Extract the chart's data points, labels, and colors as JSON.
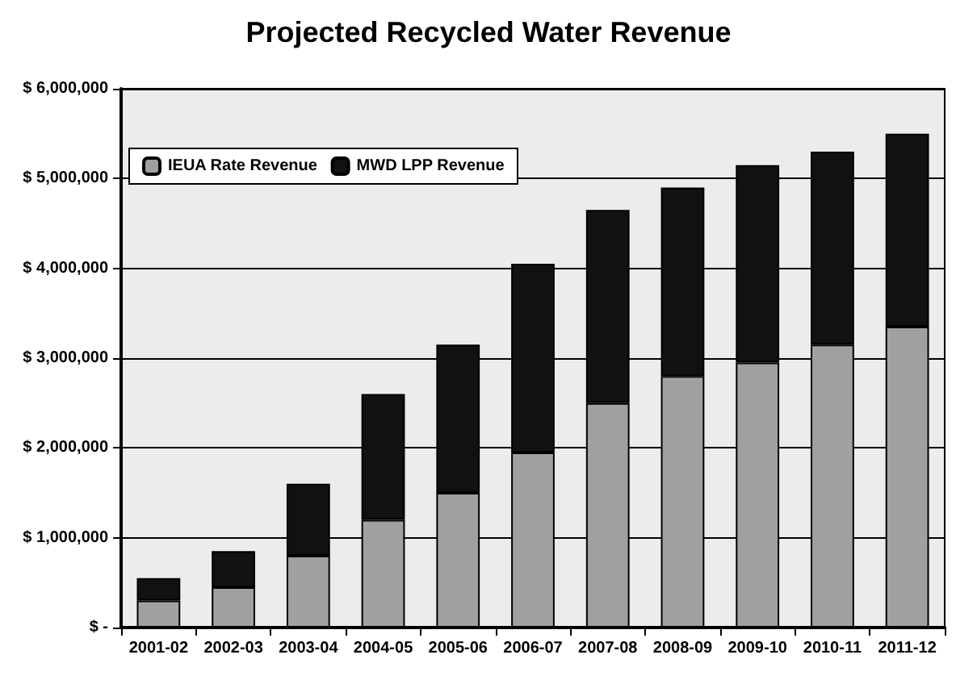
{
  "chart_data": {
    "type": "bar",
    "title": "Projected Recycled Water Revenue",
    "stacked": true,
    "categories": [
      "2001-02",
      "2002-03",
      "2003-04",
      "2004-05",
      "2005-06",
      "2006-07",
      "2007-08",
      "2008-09",
      "2009-10",
      "2010-11",
      "2011-12"
    ],
    "series": [
      {
        "name": "IEUA Rate Revenue",
        "color": "#a0a0a0",
        "values": [
          300000,
          450000,
          800000,
          1200000,
          1500000,
          1950000,
          2500000,
          2800000,
          2950000,
          3150000,
          3350000
        ]
      },
      {
        "name": "MWD LPP Revenue",
        "color": "#111111",
        "values": [
          250000,
          400000,
          800000,
          1400000,
          1650000,
          2100000,
          2150000,
          2100000,
          2200000,
          2150000,
          2150000
        ]
      }
    ],
    "ylim": [
      0,
      6000000
    ],
    "yticks": [
      {
        "value": 0,
        "label": "$ -"
      },
      {
        "value": 1000000,
        "label": "$ 1,000,000"
      },
      {
        "value": 2000000,
        "label": "$ 2,000,000"
      },
      {
        "value": 3000000,
        "label": "$ 3,000,000"
      },
      {
        "value": 4000000,
        "label": "$ 4,000,000"
      },
      {
        "value": 5000000,
        "label": "$ 5,000,000"
      },
      {
        "value": 6000000,
        "label": "$ 6,000,000"
      }
    ],
    "grid": "y",
    "legend": "top left"
  }
}
